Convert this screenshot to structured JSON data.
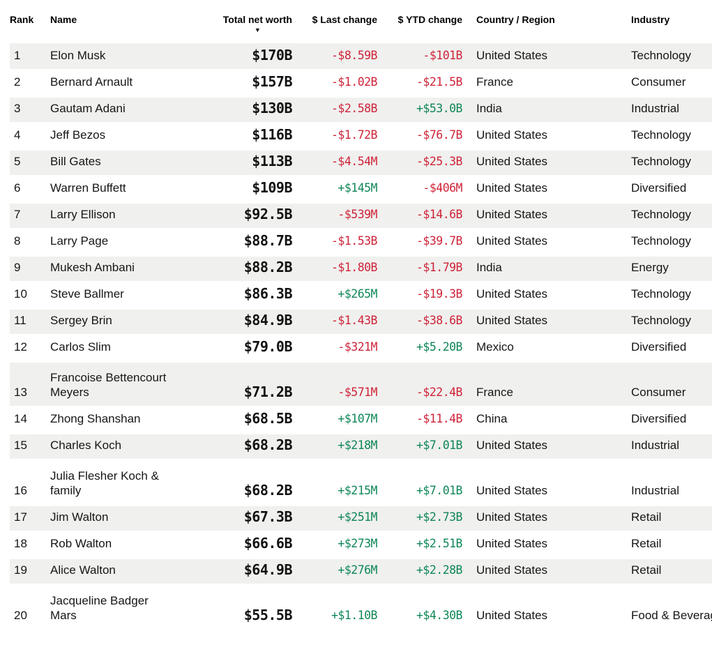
{
  "colors": {
    "positive": "#0e8656",
    "negative": "#ce2338",
    "stripe": "#f0f0ee",
    "text": "#161616"
  },
  "table": {
    "columns": [
      {
        "id": "rank",
        "label": "Rank"
      },
      {
        "id": "name",
        "label": "Name"
      },
      {
        "id": "net_worth",
        "label": "Total net worth"
      },
      {
        "id": "last_change",
        "label": "$ Last change"
      },
      {
        "id": "ytd_change",
        "label": "$ YTD change"
      },
      {
        "id": "country",
        "label": "Country / Region"
      },
      {
        "id": "industry",
        "label": "Industry"
      }
    ],
    "sort": {
      "column": "net_worth",
      "direction": "desc",
      "icon": "▼"
    },
    "rows": [
      {
        "rank": "1",
        "name": "Elon Musk",
        "net_worth": "$170B",
        "last_change": "-$8.59B",
        "ytd_change": "-$101B",
        "country": "United States",
        "industry": "Technology"
      },
      {
        "rank": "2",
        "name": "Bernard Arnault",
        "net_worth": "$157B",
        "last_change": "-$1.02B",
        "ytd_change": "-$21.5B",
        "country": "France",
        "industry": "Consumer"
      },
      {
        "rank": "3",
        "name": "Gautam Adani",
        "net_worth": "$130B",
        "last_change": "-$2.58B",
        "ytd_change": "+$53.0B",
        "country": "India",
        "industry": "Industrial"
      },
      {
        "rank": "4",
        "name": "Jeff Bezos",
        "net_worth": "$116B",
        "last_change": "-$1.72B",
        "ytd_change": "-$76.7B",
        "country": "United States",
        "industry": "Technology"
      },
      {
        "rank": "5",
        "name": "Bill Gates",
        "net_worth": "$113B",
        "last_change": "-$4.54M",
        "ytd_change": "-$25.3B",
        "country": "United States",
        "industry": "Technology"
      },
      {
        "rank": "6",
        "name": "Warren Buffett",
        "net_worth": "$109B",
        "last_change": "+$145M",
        "ytd_change": "-$406M",
        "country": "United States",
        "industry": "Diversified"
      },
      {
        "rank": "7",
        "name": "Larry Ellison",
        "net_worth": "$92.5B",
        "last_change": "-$539M",
        "ytd_change": "-$14.6B",
        "country": "United States",
        "industry": "Technology"
      },
      {
        "rank": "8",
        "name": "Larry Page",
        "net_worth": "$88.7B",
        "last_change": "-$1.53B",
        "ytd_change": "-$39.7B",
        "country": "United States",
        "industry": "Technology"
      },
      {
        "rank": "9",
        "name": "Mukesh Ambani",
        "net_worth": "$88.2B",
        "last_change": "-$1.80B",
        "ytd_change": "-$1.79B",
        "country": "India",
        "industry": "Energy"
      },
      {
        "rank": "10",
        "name": "Steve Ballmer",
        "net_worth": "$86.3B",
        "last_change": "+$265M",
        "ytd_change": "-$19.3B",
        "country": "United States",
        "industry": "Technology"
      },
      {
        "rank": "11",
        "name": "Sergey Brin",
        "net_worth": "$84.9B",
        "last_change": "-$1.43B",
        "ytd_change": "-$38.6B",
        "country": "United States",
        "industry": "Technology"
      },
      {
        "rank": "12",
        "name": "Carlos Slim",
        "net_worth": "$79.0B",
        "last_change": "-$321M",
        "ytd_change": "+$5.20B",
        "country": "Mexico",
        "industry": "Diversified"
      },
      {
        "rank": "13",
        "name": "Francoise Bettencourt Meyers",
        "net_worth": "$71.2B",
        "last_change": "-$571M",
        "ytd_change": "-$22.4B",
        "country": "France",
        "industry": "Consumer"
      },
      {
        "rank": "14",
        "name": "Zhong Shanshan",
        "net_worth": "$68.5B",
        "last_change": "+$107M",
        "ytd_change": "-$11.4B",
        "country": "China",
        "industry": "Diversified"
      },
      {
        "rank": "15",
        "name": "Charles Koch",
        "net_worth": "$68.2B",
        "last_change": "+$218M",
        "ytd_change": "+$7.01B",
        "country": "United States",
        "industry": "Industrial"
      },
      {
        "rank": "16",
        "name": "Julia Flesher Koch & family",
        "net_worth": "$68.2B",
        "last_change": "+$215M",
        "ytd_change": "+$7.01B",
        "country": "United States",
        "industry": "Industrial"
      },
      {
        "rank": "17",
        "name": "Jim Walton",
        "net_worth": "$67.3B",
        "last_change": "+$251M",
        "ytd_change": "+$2.73B",
        "country": "United States",
        "industry": "Retail"
      },
      {
        "rank": "18",
        "name": "Rob Walton",
        "net_worth": "$66.6B",
        "last_change": "+$273M",
        "ytd_change": "+$2.51B",
        "country": "United States",
        "industry": "Retail"
      },
      {
        "rank": "19",
        "name": "Alice Walton",
        "net_worth": "$64.9B",
        "last_change": "+$276M",
        "ytd_change": "+$2.28B",
        "country": "United States",
        "industry": "Retail"
      },
      {
        "rank": "20",
        "name": "Jacqueline Badger Mars",
        "net_worth": "$55.5B",
        "last_change": "+$1.10B",
        "ytd_change": "+$4.30B",
        "country": "United States",
        "industry": "Food & Beverage"
      }
    ]
  }
}
